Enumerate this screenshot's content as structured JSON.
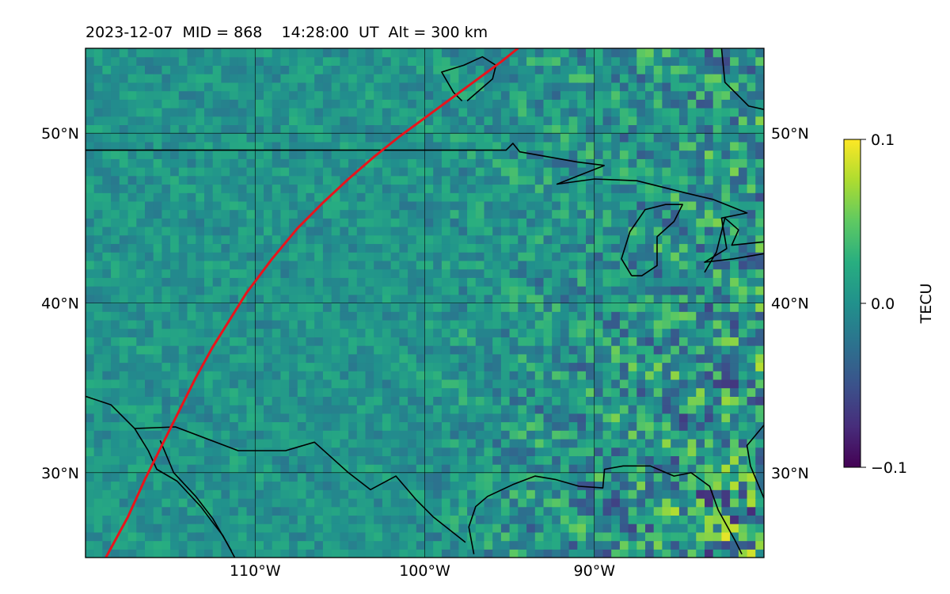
{
  "title": "2023-12-07  MID = 868    14:28:00  UT  Alt = 300 km",
  "map": {
    "lon_range": [
      -120,
      -80
    ],
    "lat_range": [
      25,
      55
    ],
    "lat_ticks": [
      {
        "value": 30,
        "label": "30°N"
      },
      {
        "value": 40,
        "label": "40°N"
      },
      {
        "value": 50,
        "label": "50°N"
      }
    ],
    "lon_ticks": [
      {
        "value": -110,
        "label": "110°W"
      },
      {
        "value": -100,
        "label": "100°W"
      },
      {
        "value": -90,
        "label": "90°W"
      }
    ],
    "field_colormap": "viridis",
    "coastline_color": "#000000",
    "track_color": "#e8141c"
  },
  "colorbar": {
    "label": "TECU",
    "min": -0.1,
    "max": 0.1,
    "ticks": [
      {
        "value": 0.1,
        "label": "0.1"
      },
      {
        "value": 0.0,
        "label": "0.0"
      },
      {
        "value": -0.1,
        "label": "−0.1"
      }
    ]
  },
  "track": {
    "lon": [
      -118.8,
      -117.5,
      -116.5,
      -115.5,
      -114.5,
      -113.5,
      -112.5,
      -111.5,
      -110.5,
      -109.0,
      -107.5,
      -106.0,
      -104.5,
      -103.0,
      -101.5,
      -100.0,
      -98.5,
      -97.0,
      -95.5,
      -94.5
    ],
    "lat": [
      25.0,
      27.4,
      29.6,
      31.6,
      33.6,
      35.6,
      37.4,
      39.0,
      40.6,
      42.6,
      44.4,
      45.9,
      47.3,
      48.6,
      49.8,
      50.9,
      52.0,
      53.1,
      54.2,
      55.0
    ]
  }
}
